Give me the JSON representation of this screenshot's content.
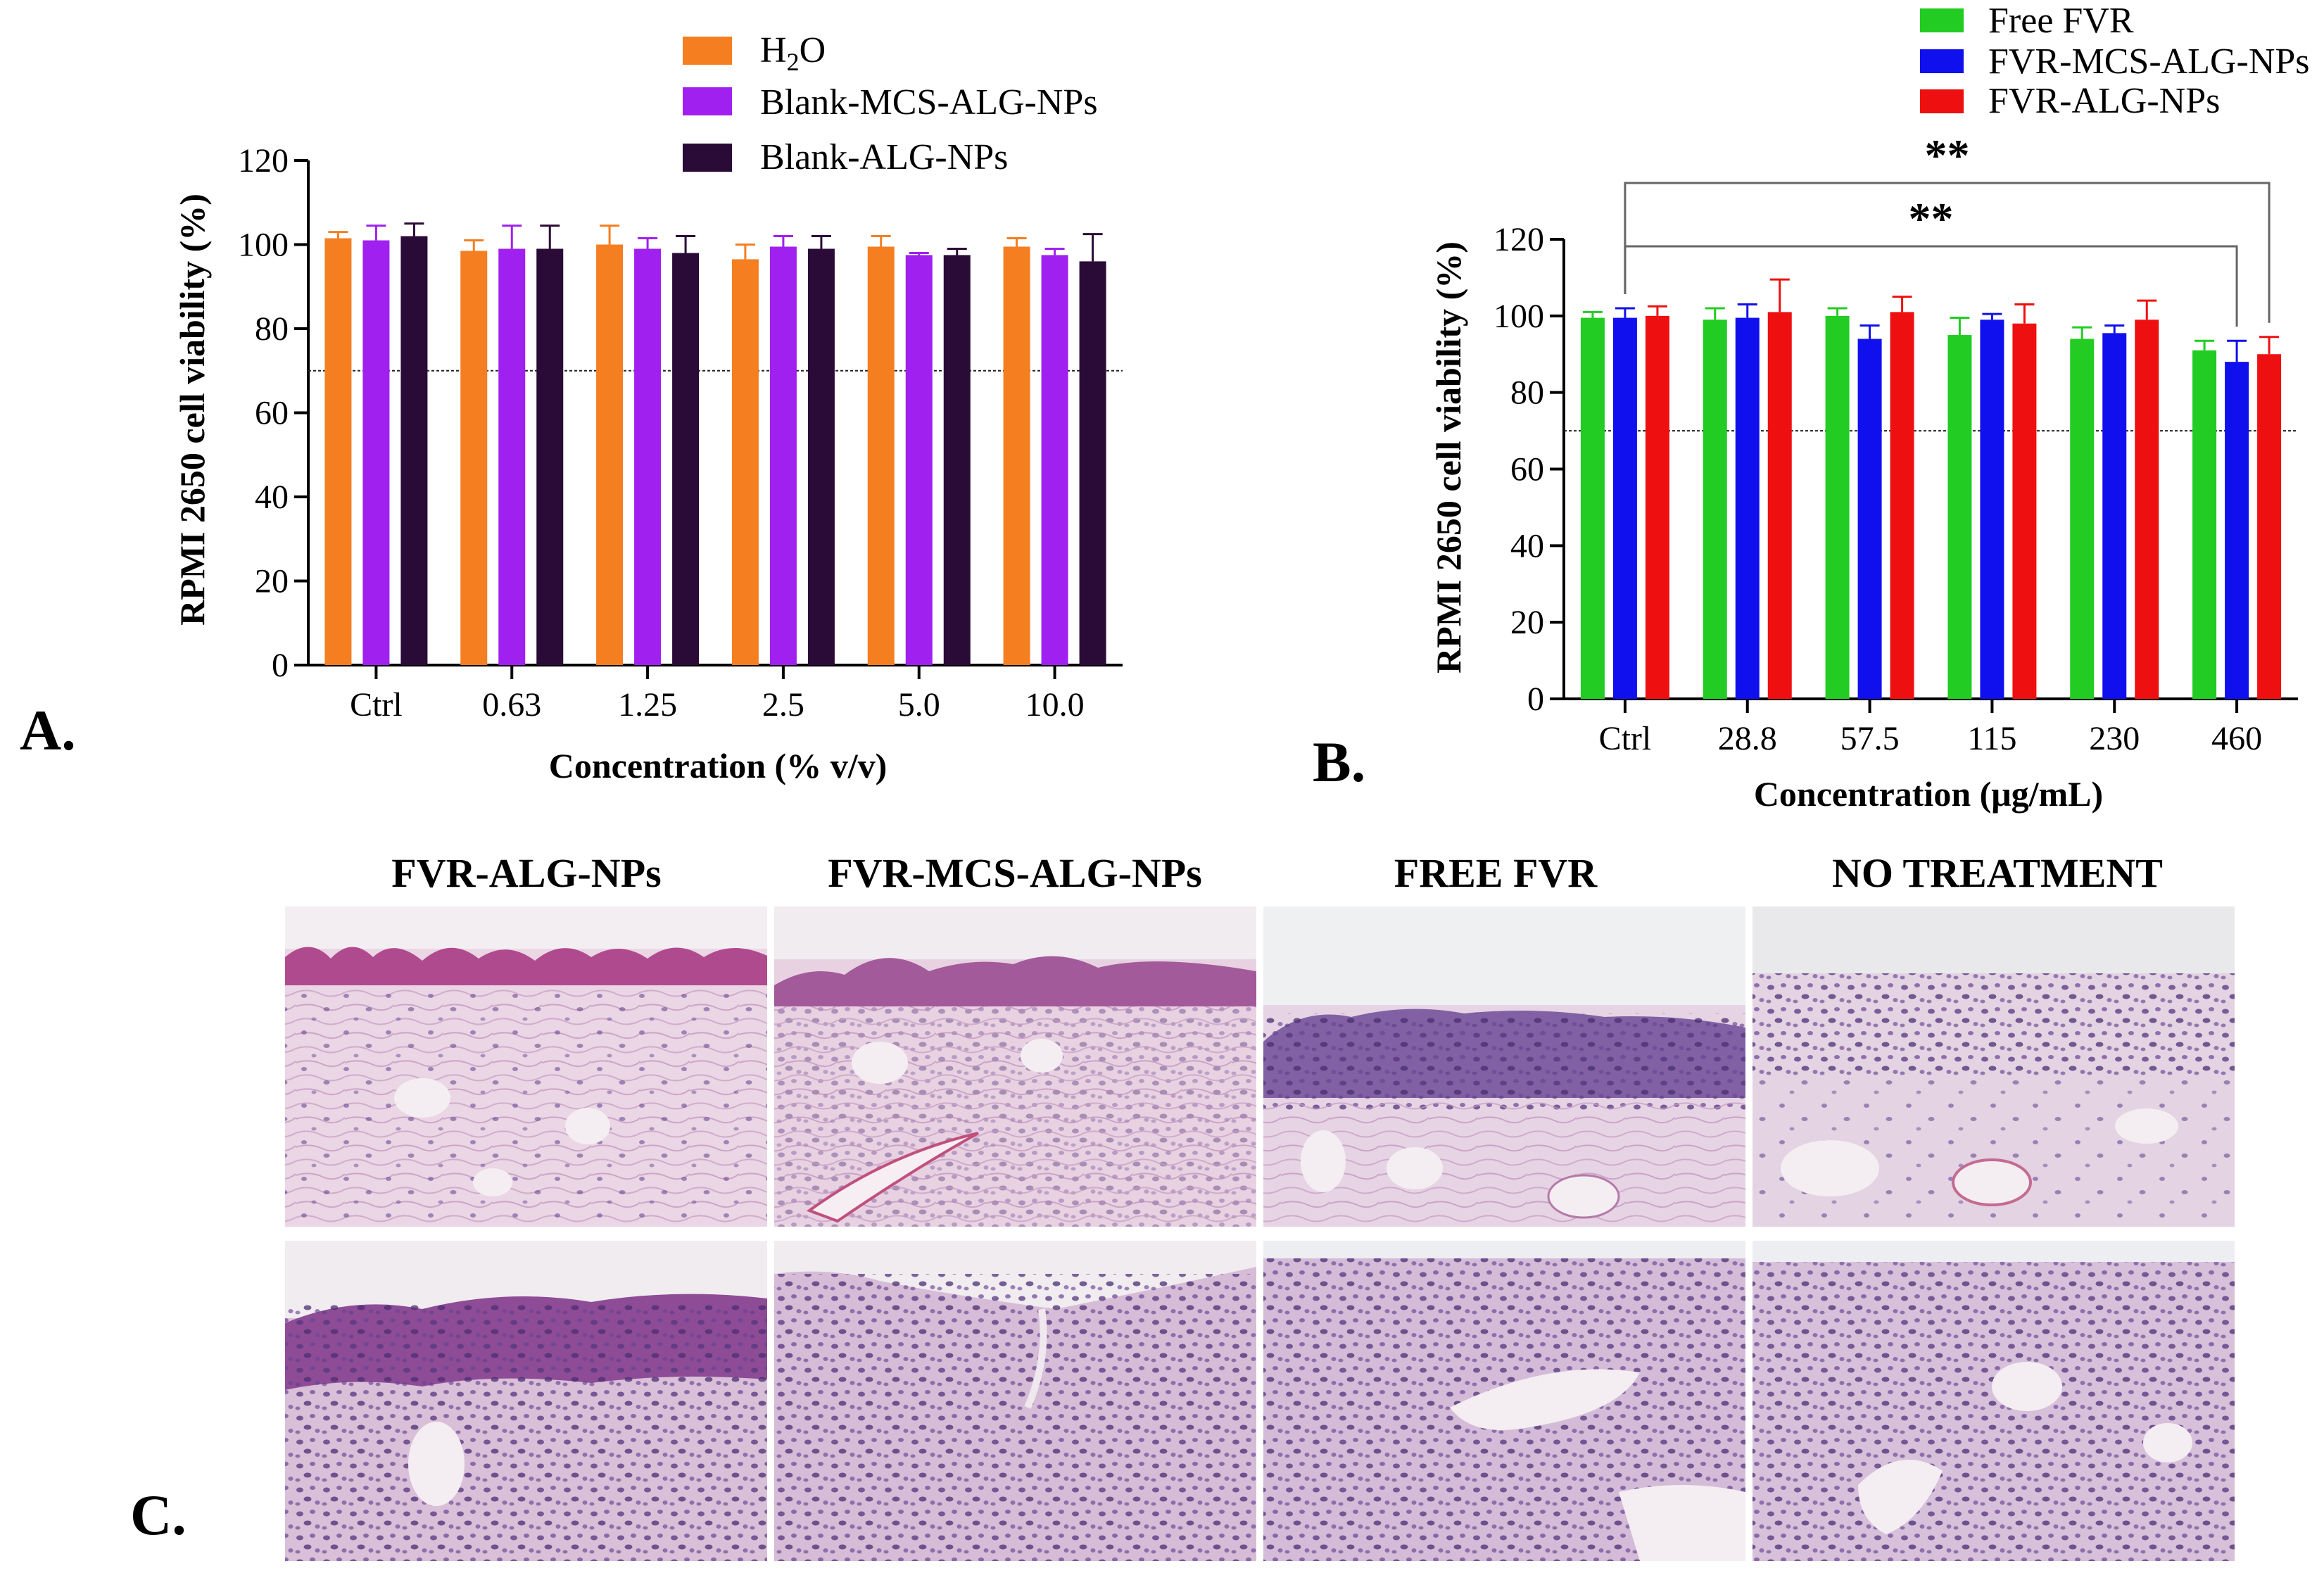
{
  "figure": {
    "panel_labels": [
      "A.",
      "B.",
      "C."
    ]
  },
  "colors": {
    "h2o": "#f47e20",
    "blank_mcs": "#a020f0",
    "blank_alg": "#2a0a36",
    "free_fvr": "#22cc22",
    "fvr_mcs": "#1010ee",
    "fvr_alg": "#ee1010"
  },
  "chart_data": [
    {
      "type": "bar",
      "panel": "A.",
      "title": "",
      "xlabel": "Concentration (% v/v)",
      "ylabel": "RPMI 2650 cell viability (%)",
      "categories": [
        "Ctrl",
        "0.63",
        "1.25",
        "2.5",
        "5.0",
        "10.0"
      ],
      "ylim": [
        0,
        120
      ],
      "yticks": [
        0,
        20,
        40,
        60,
        80,
        100,
        120
      ],
      "reference_line": 70,
      "legend_position": "top",
      "series": [
        {
          "name": "H2O",
          "color": "#f47e20",
          "values": [
            101.5,
            98.5,
            100,
            96.5,
            99.5,
            99.5
          ],
          "error": [
            1.5,
            2.5,
            4.5,
            3.5,
            2.5,
            2
          ]
        },
        {
          "name": "Blank-MCS-ALG-NPs",
          "color": "#a020f0",
          "values": [
            101,
            99,
            99,
            99.5,
            97.5,
            97.5
          ],
          "error": [
            3.5,
            5.5,
            2.5,
            2.5,
            0.5,
            1.5
          ]
        },
        {
          "name": "Blank-ALG-NPs",
          "color": "#2a0a36",
          "values": [
            102,
            99,
            98,
            99,
            97.5,
            96
          ],
          "error": [
            3,
            5.5,
            4,
            3,
            1.5,
            6.5
          ]
        }
      ]
    },
    {
      "type": "bar",
      "panel": "B.",
      "title": "",
      "xlabel": "Concentration (μg/mL)",
      "ylabel": "RPMI 2650 cell viability (%)",
      "categories": [
        "Ctrl",
        "28.8",
        "57.5",
        "115",
        "230",
        "460"
      ],
      "ylim": [
        0,
        120
      ],
      "yticks": [
        0,
        20,
        40,
        60,
        80,
        100,
        120
      ],
      "reference_line": 70,
      "legend_position": "top-right",
      "series": [
        {
          "name": "Free FVR",
          "color": "#22cc22",
          "values": [
            99.5,
            99,
            100,
            95,
            94,
            91
          ],
          "error": [
            1.5,
            3,
            2,
            4.5,
            3,
            2.5
          ]
        },
        {
          "name": "FVR-MCS-ALG-NPs",
          "color": "#1010ee",
          "values": [
            99.5,
            99.5,
            94,
            99,
            95.5,
            88
          ],
          "error": [
            2.5,
            3.5,
            3.5,
            1.5,
            2,
            5.5
          ]
        },
        {
          "name": "FVR-ALG-NPs",
          "color": "#ee1010",
          "values": [
            100,
            101,
            101,
            98,
            99,
            90
          ],
          "error": [
            2.5,
            8.5,
            4,
            5,
            5,
            4.5
          ]
        }
      ],
      "significance": [
        {
          "label": "**",
          "from": "Ctrl",
          "to": "460",
          "series_to": "FVR-ALG-NPs"
        },
        {
          "label": "**",
          "from": "Ctrl",
          "to": "460",
          "series_to": "FVR-MCS-ALG-NPs"
        }
      ]
    }
  ],
  "legend_a": {
    "h2o_main": "H",
    "h2o_sub": "2",
    "h2o_tail": "O",
    "blank_mcs": "Blank-MCS-ALG-NPs",
    "blank_alg": "Blank-ALG-NPs"
  },
  "histology": {
    "columns": [
      "FVR-ALG-NPs",
      "FVR-MCS-ALG-NPs",
      "FREE FVR",
      "NO TREATMENT"
    ]
  }
}
